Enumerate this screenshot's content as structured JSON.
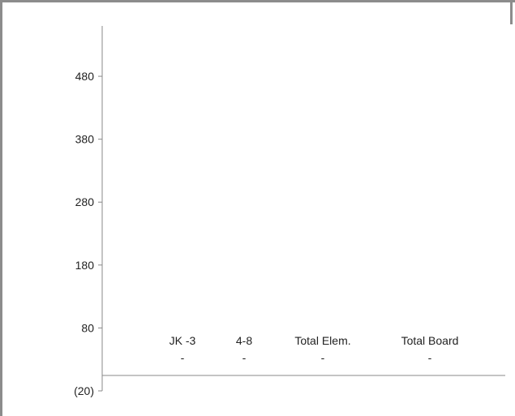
{
  "chart_data": {
    "type": "bar",
    "categories": [
      "JK -3",
      "4-8",
      "Total Elem.",
      "Total Board"
    ],
    "values": [
      0,
      0,
      0,
      0
    ],
    "data_labels": [
      "-",
      "-",
      "-",
      "-"
    ],
    "yticks": [
      {
        "value": 480,
        "label": "480"
      },
      {
        "value": 380,
        "label": "380"
      },
      {
        "value": 280,
        "label": "280"
      },
      {
        "value": 180,
        "label": "180"
      },
      {
        "value": 80,
        "label": "80"
      },
      {
        "value": -20,
        "label": "(20)"
      }
    ],
    "ylim": [
      -20,
      560
    ],
    "grid": false,
    "title": "",
    "xlabel": "",
    "ylabel": "",
    "colors": {
      "axis": "#888888",
      "text": "#222222",
      "frame": "#8c8c8c"
    }
  }
}
